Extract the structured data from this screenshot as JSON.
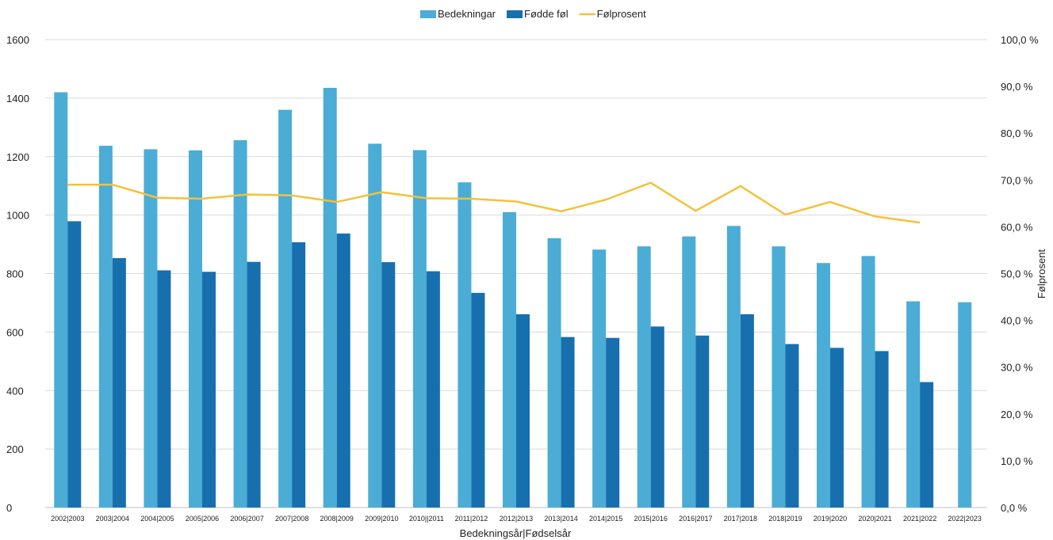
{
  "chart_data": {
    "type": "bar",
    "categories": [
      "2002|2003",
      "2003|2004",
      "2004|2005",
      "2005|2006",
      "2006|2007",
      "2007|2008",
      "2008|2009",
      "2009|2010",
      "2010||2011",
      "2011|2012",
      "2012|2013",
      "2013|2014",
      "2014|2015",
      "2015|2016",
      "2016|2017",
      "2017|2018",
      "2018|2019",
      "2019|2020",
      "2020|2021",
      "2021|2022",
      "2022|2023"
    ],
    "series": [
      {
        "name": "Bedekningar",
        "kind": "bar",
        "color": "#4bacd6",
        "axis": "left",
        "values": [
          1420,
          1237,
          1225,
          1221,
          1256,
          1360,
          1435,
          1244,
          1222,
          1112,
          1010,
          921,
          882,
          893,
          927,
          963,
          893,
          836,
          860,
          705,
          702
        ]
      },
      {
        "name": "Fødde føl",
        "kind": "bar",
        "color": "#1770ad",
        "axis": "left",
        "values": [
          979,
          853,
          811,
          806,
          840,
          907,
          937,
          839,
          808,
          734,
          661,
          583,
          580,
          619,
          588,
          661,
          559,
          546,
          535,
          429,
          null
        ]
      },
      {
        "name": "Følprosent",
        "kind": "line",
        "color": "#f4c13a",
        "axis": "right",
        "values": [
          69.0,
          69.0,
          66.2,
          66.0,
          66.9,
          66.7,
          65.3,
          67.4,
          66.1,
          66.0,
          65.4,
          63.3,
          65.8,
          69.4,
          63.4,
          68.7,
          62.6,
          65.3,
          62.2,
          60.9,
          null
        ]
      }
    ],
    "xlabel": "Bedekningsår|Fødselsår",
    "ylabel": "",
    "y2label": "Følprosent",
    "ylim": [
      0,
      1600
    ],
    "yticks": [
      "0",
      "200",
      "400",
      "600",
      "800",
      "1000",
      "1200",
      "1400",
      "1600"
    ],
    "y2lim": [
      0,
      100
    ],
    "y2ticks": [
      "0,0 %",
      "10,0 %",
      "20,0 %",
      "30,0 %",
      "40,0 %",
      "50,0 %",
      "60,0 %",
      "70,0 %",
      "80,0 %",
      "90,0 %",
      "100,0 %"
    ],
    "grid": true,
    "legend": "top-center"
  }
}
